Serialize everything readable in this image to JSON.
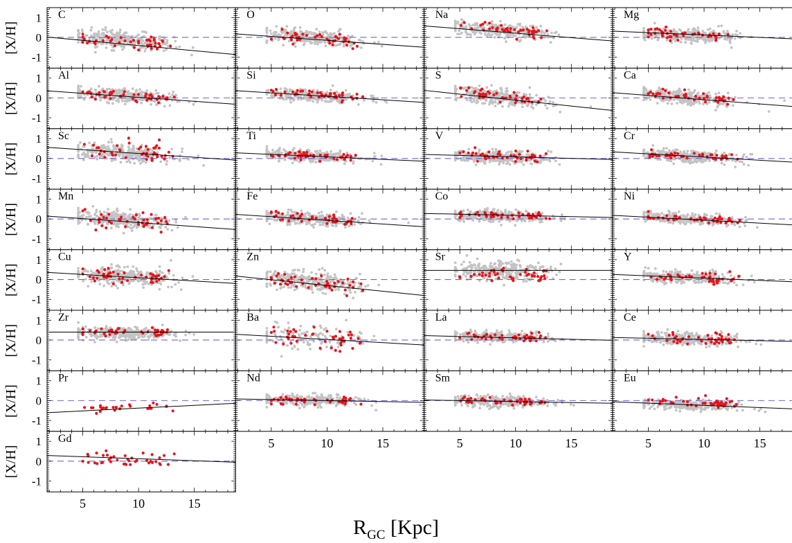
{
  "chart_data": {
    "type": "scatter",
    "xlabel": "R",
    "xlabel_sub": "GC",
    "xlabel_unit": " [Kpc]",
    "ylabel": "[X/H]",
    "xlim": [
      1.8,
      18.7
    ],
    "ylim": [
      -1.55,
      1.5
    ],
    "xticks": [
      5,
      10,
      15
    ],
    "yticks": [
      -1,
      0,
      1
    ],
    "reference_line": 0,
    "colors": {
      "points_gray": "#c3c3c3",
      "points_red": "#e8141b",
      "fit": "#000000",
      "ref": "#7060d8"
    },
    "panels": [
      {
        "element": "C",
        "fit": [
          0.11,
          -0.052
        ],
        "gray_n": 300,
        "gray_center": -0.15,
        "gray_spread": 0.22,
        "red_n": 45,
        "red_center": -0.2,
        "red_spread": 0.15
      },
      {
        "element": "O",
        "fit": [
          0.25,
          -0.04
        ],
        "gray_n": 300,
        "gray_center": -0.02,
        "gray_spread": 0.17,
        "red_n": 45,
        "red_center": -0.02,
        "red_spread": 0.14
      },
      {
        "element": "Na",
        "fit": [
          0.66,
          -0.045
        ],
        "gray_n": 300,
        "gray_center": 0.33,
        "gray_spread": 0.18,
        "red_n": 45,
        "red_center": 0.38,
        "red_spread": 0.15
      },
      {
        "element": "Mg",
        "fit": [
          0.36,
          -0.024
        ],
        "gray_n": 300,
        "gray_center": 0.1,
        "gray_spread": 0.16,
        "red_n": 45,
        "red_center": 0.1,
        "red_spread": 0.14
      },
      {
        "element": "Al",
        "fit": [
          0.43,
          -0.04
        ],
        "gray_n": 300,
        "gray_center": 0.1,
        "gray_spread": 0.18,
        "red_n": 45,
        "red_center": 0.12,
        "red_spread": 0.13
      },
      {
        "element": "Si",
        "fit": [
          0.43,
          -0.035
        ],
        "gray_n": 300,
        "gray_center": 0.1,
        "gray_spread": 0.15,
        "red_n": 45,
        "red_center": 0.17,
        "red_spread": 0.12
      },
      {
        "element": "S",
        "fit": [
          0.49,
          -0.06
        ],
        "gray_n": 300,
        "gray_center": 0.0,
        "gray_spread": 0.2,
        "red_n": 45,
        "red_center": 0.08,
        "red_spread": 0.14
      },
      {
        "element": "Ca",
        "fit": [
          0.34,
          -0.043
        ],
        "gray_n": 300,
        "gray_center": 0.0,
        "gray_spread": 0.17,
        "red_n": 45,
        "red_center": 0.05,
        "red_spread": 0.12
      },
      {
        "element": "Sc",
        "fit": [
          0.63,
          -0.038
        ],
        "gray_n": 300,
        "gray_center": 0.25,
        "gray_spread": 0.2,
        "red_n": 45,
        "red_center": 0.35,
        "red_spread": 0.25
      },
      {
        "element": "Ti",
        "fit": [
          0.33,
          -0.025
        ],
        "gray_n": 300,
        "gray_center": 0.1,
        "gray_spread": 0.14,
        "red_n": 45,
        "red_center": 0.12,
        "red_spread": 0.1
      },
      {
        "element": "V",
        "fit": [
          0.23,
          -0.015
        ],
        "gray_n": 300,
        "gray_center": 0.05,
        "gray_spread": 0.16,
        "red_n": 45,
        "red_center": 0.1,
        "red_spread": 0.15
      },
      {
        "element": "Cr",
        "fit": [
          0.39,
          -0.032
        ],
        "gray_n": 300,
        "gray_center": 0.1,
        "gray_spread": 0.14,
        "red_n": 45,
        "red_center": 0.13,
        "red_spread": 0.1
      },
      {
        "element": "Mn",
        "fit": [
          0.22,
          -0.04
        ],
        "gray_n": 300,
        "gray_center": -0.05,
        "gray_spread": 0.2,
        "red_n": 45,
        "red_center": -0.05,
        "red_spread": 0.22
      },
      {
        "element": "Fe",
        "fit": [
          0.3,
          -0.037
        ],
        "gray_n": 300,
        "gray_center": 0.0,
        "gray_spread": 0.15,
        "red_n": 45,
        "red_center": 0.02,
        "red_spread": 0.1
      },
      {
        "element": "Co",
        "fit": [
          0.3,
          -0.012
        ],
        "gray_n": 300,
        "gray_center": 0.15,
        "gray_spread": 0.15,
        "red_n": 45,
        "red_center": 0.2,
        "red_spread": 0.1
      },
      {
        "element": "Ni",
        "fit": [
          0.24,
          -0.03
        ],
        "gray_n": 300,
        "gray_center": 0.0,
        "gray_spread": 0.12,
        "red_n": 45,
        "red_center": 0.0,
        "red_spread": 0.08
      },
      {
        "element": "Cu",
        "fit": [
          0.42,
          -0.033
        ],
        "gray_n": 300,
        "gray_center": 0.15,
        "gray_spread": 0.22,
        "red_n": 45,
        "red_center": 0.17,
        "red_spread": 0.18
      },
      {
        "element": "Zn",
        "fit": [
          0.28,
          -0.058
        ],
        "gray_n": 300,
        "gray_center": -0.1,
        "gray_spread": 0.25,
        "red_n": 45,
        "red_center": -0.15,
        "red_spread": 0.2
      },
      {
        "element": "Sr",
        "fit": [
          0.46,
          0.0
        ],
        "gray_n": 300,
        "gray_center": 0.45,
        "gray_spread": 0.25,
        "red_n": 45,
        "red_center": 0.15,
        "red_spread": 0.2
      },
      {
        "element": "Y",
        "fit": [
          0.3,
          -0.023
        ],
        "gray_n": 300,
        "gray_center": 0.1,
        "gray_spread": 0.15,
        "red_n": 45,
        "red_center": 0.12,
        "red_spread": 0.14
      },
      {
        "element": "Zr",
        "fit": [
          0.4,
          0.0
        ],
        "gray_n": 300,
        "gray_center": 0.35,
        "gray_spread": 0.15,
        "red_n": 45,
        "red_center": 0.38,
        "red_spread": 0.12
      },
      {
        "element": "Ba",
        "fit": [
          0.35,
          -0.032
        ],
        "gray_n": 120,
        "gray_center": 0.1,
        "gray_spread": 0.3,
        "red_n": 45,
        "red_center": 0.1,
        "red_spread": 0.3
      },
      {
        "element": "La",
        "fit": [
          0.25,
          -0.014
        ],
        "gray_n": 300,
        "gray_center": 0.15,
        "gray_spread": 0.13,
        "red_n": 45,
        "red_center": 0.15,
        "red_spread": 0.1
      },
      {
        "element": "Ce",
        "fit": [
          0.15,
          -0.012
        ],
        "gray_n": 300,
        "gray_center": 0.05,
        "gray_spread": 0.15,
        "red_n": 45,
        "red_center": 0.05,
        "red_spread": 0.15
      },
      {
        "element": "Pr",
        "fit": [
          -0.66,
          0.028
        ],
        "gray_n": 0,
        "gray_center": 0,
        "gray_spread": 0,
        "red_n": 28,
        "red_center": -0.38,
        "red_spread": 0.13
      },
      {
        "element": "Nd",
        "fit": [
          0.1,
          -0.01
        ],
        "gray_n": 300,
        "gray_center": 0.0,
        "gray_spread": 0.14,
        "red_n": 45,
        "red_center": 0.0,
        "red_spread": 0.12
      },
      {
        "element": "Sm",
        "fit": [
          0.05,
          -0.01
        ],
        "gray_n": 300,
        "gray_center": -0.05,
        "gray_spread": 0.15,
        "red_n": 45,
        "red_center": -0.03,
        "red_spread": 0.1
      },
      {
        "element": "Eu",
        "fit": [
          -0.02,
          -0.022
        ],
        "gray_n": 300,
        "gray_center": -0.25,
        "gray_spread": 0.13,
        "red_n": 45,
        "red_center": -0.1,
        "red_spread": 0.12
      },
      {
        "element": "Gd",
        "fit": [
          0.32,
          -0.02
        ],
        "gray_n": 0,
        "gray_center": 0,
        "gray_spread": 0,
        "red_n": 40,
        "red_center": 0.1,
        "red_spread": 0.17
      }
    ]
  }
}
